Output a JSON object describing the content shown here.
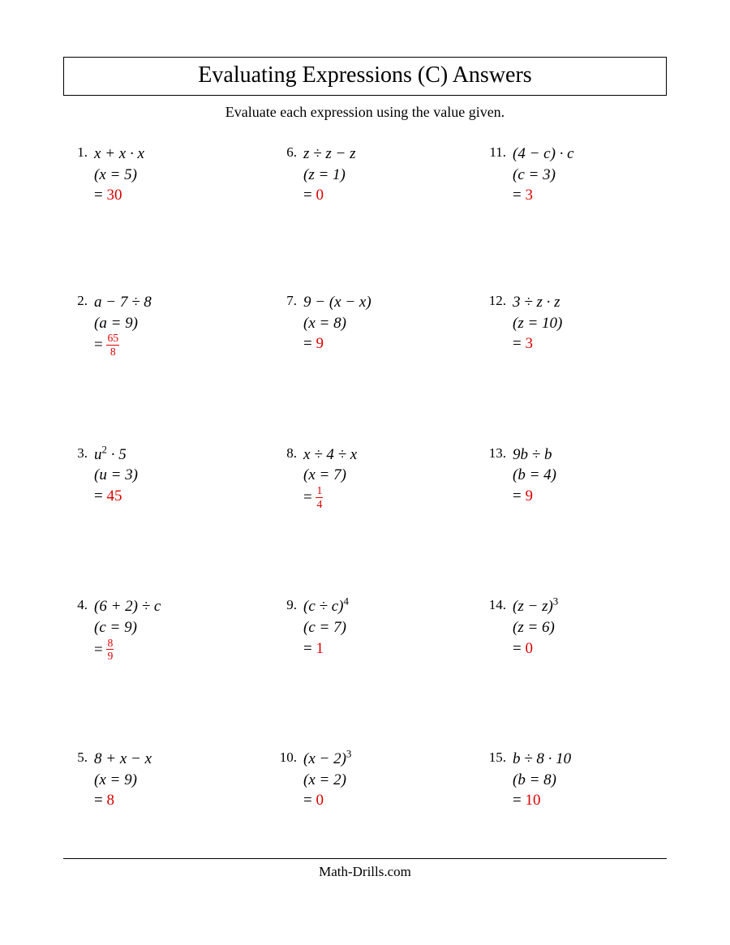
{
  "title": "Evaluating Expressions (C) Answers",
  "subtitle": "Evaluate each expression using the value given.",
  "footer": "Math-Drills.com",
  "answer_color": "#dc0000",
  "problems": [
    {
      "n": "1.",
      "expr": "<i>x</i> + <i>x</i> · <i>x</i>",
      "given": "(<i>x</i> = 5)",
      "ans": "30"
    },
    {
      "n": "2.",
      "expr": "<i>a</i> − 7 ÷ 8",
      "given": "(<i>a</i> = 9)",
      "ans": "<span class='frac'><span class='fn'>65</span><span class='fd'>8</span></span>"
    },
    {
      "n": "3.",
      "expr": "<i>u</i><sup>2</sup> · 5",
      "given": "(<i>u</i> = 3)",
      "ans": "45"
    },
    {
      "n": "4.",
      "expr": "(6 + 2) ÷ <i>c</i>",
      "given": "(<i>c</i> = 9)",
      "ans": "<span class='frac'><span class='fn'>8</span><span class='fd'>9</span></span>"
    },
    {
      "n": "5.",
      "expr": "8 + <i>x</i> − <i>x</i>",
      "given": "(<i>x</i> = 9)",
      "ans": "8"
    },
    {
      "n": "6.",
      "expr": "<i>z</i> ÷ <i>z</i> − <i>z</i>",
      "given": "(<i>z</i> = 1)",
      "ans": "0"
    },
    {
      "n": "7.",
      "expr": "9 − (<i>x</i> − <i>x</i>)",
      "given": "(<i>x</i> = 8)",
      "ans": "9"
    },
    {
      "n": "8.",
      "expr": "<i>x</i> ÷ 4 ÷ <i>x</i>",
      "given": "(<i>x</i> = 7)",
      "ans": "<span class='frac'><span class='fn'>1</span><span class='fd'>4</span></span>"
    },
    {
      "n": "9.",
      "expr": "(<i>c</i> ÷ <i>c</i>)<sup>4</sup>",
      "given": "(<i>c</i> = 7)",
      "ans": "1"
    },
    {
      "n": "10.",
      "expr": "(<i>x</i> − 2)<sup>3</sup>",
      "given": "(<i>x</i> = 2)",
      "ans": "0"
    },
    {
      "n": "11.",
      "expr": "(4 − <i>c</i>) · <i>c</i>",
      "given": "(<i>c</i> = 3)",
      "ans": "3"
    },
    {
      "n": "12.",
      "expr": "3 ÷ <i>z</i> · <i>z</i>",
      "given": "(<i>z</i> = 10)",
      "ans": "3"
    },
    {
      "n": "13.",
      "expr": "9<i>b</i> ÷ <i>b</i>",
      "given": "(<i>b</i> = 4)",
      "ans": "9"
    },
    {
      "n": "14.",
      "expr": "(<i>z</i> − <i>z</i>)<sup>3</sup>",
      "given": "(<i>z</i> = 6)",
      "ans": "0"
    },
    {
      "n": "15.",
      "expr": "<i>b</i> ÷ 8 · 10",
      "given": "(<i>b</i> = 8)",
      "ans": "10"
    }
  ],
  "layout_order": [
    0,
    5,
    10,
    1,
    6,
    11,
    2,
    7,
    12,
    3,
    8,
    13,
    4,
    9,
    14
  ]
}
